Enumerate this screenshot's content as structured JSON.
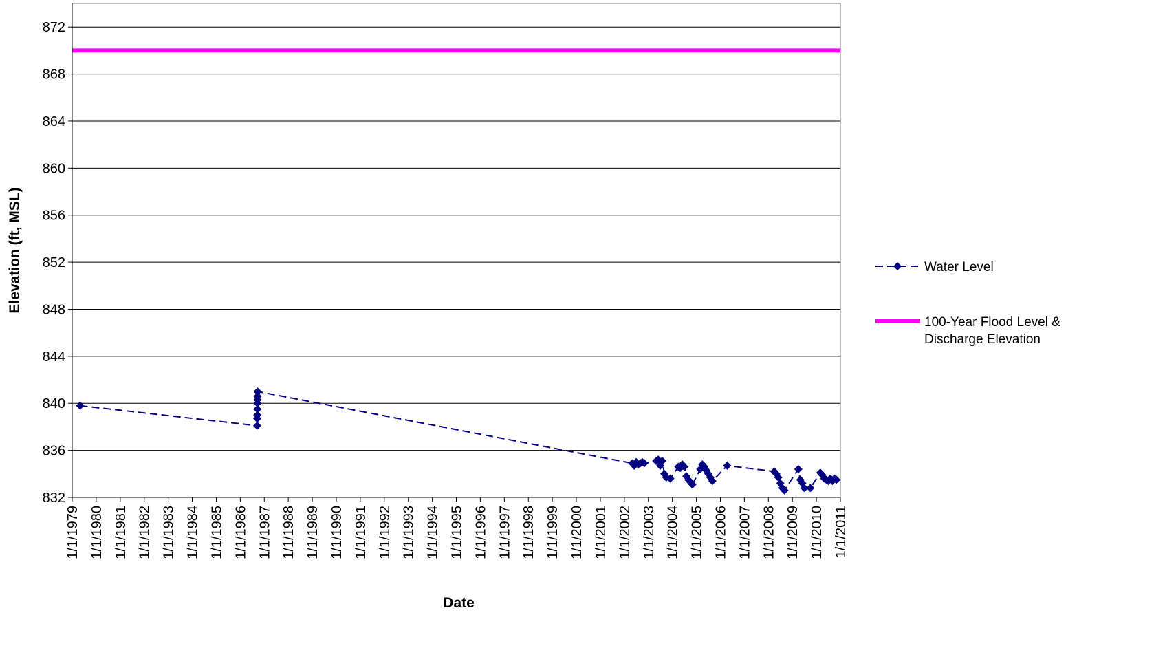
{
  "chart_data": {
    "type": "line",
    "title": "",
    "xlabel": "Date",
    "ylabel": "Elevation (ft, MSL)",
    "ylim": [
      832,
      874
    ],
    "yticks": [
      832,
      836,
      840,
      844,
      848,
      852,
      856,
      860,
      864,
      868,
      872
    ],
    "x_range": [
      "1/1/1979",
      "1/1/2011"
    ],
    "xticks": [
      "1/1/1979",
      "1/1/1980",
      "1/1/1981",
      "1/1/1982",
      "1/1/1983",
      "1/1/1984",
      "1/1/1985",
      "1/1/1986",
      "1/1/1987",
      "1/1/1988",
      "1/1/1989",
      "1/1/1990",
      "1/1/1991",
      "1/1/1992",
      "1/1/1993",
      "1/1/1994",
      "1/1/1995",
      "1/1/1996",
      "1/1/1997",
      "1/1/1998",
      "1/1/1999",
      "1/1/2000",
      "1/1/2001",
      "1/1/2002",
      "1/1/2003",
      "1/1/2004",
      "1/1/2005",
      "1/1/2006",
      "1/1/2007",
      "1/1/2008",
      "1/1/2009",
      "1/1/2010",
      "1/1/2011"
    ],
    "grid": "horizontal",
    "legend_position": "right",
    "series": [
      {
        "name": "Water Level",
        "color": "#000080",
        "line_style": "dashed",
        "marker": "diamond",
        "points": [
          {
            "x": "1979-05-01",
            "y": 839.8
          },
          {
            "x": "1986-09-15",
            "y": 838.1
          },
          {
            "x": "1986-09-16",
            "y": 838.7
          },
          {
            "x": "1986-09-17",
            "y": 839.0
          },
          {
            "x": "1986-09-18",
            "y": 839.5
          },
          {
            "x": "1986-09-19",
            "y": 840.0
          },
          {
            "x": "1986-09-20",
            "y": 840.3
          },
          {
            "x": "1986-09-21",
            "y": 840.6
          },
          {
            "x": "1986-09-22",
            "y": 841.0
          },
          {
            "x": "2002-05-01",
            "y": 834.9
          },
          {
            "x": "2002-06-01",
            "y": 834.7
          },
          {
            "x": "2002-07-01",
            "y": 835.0
          },
          {
            "x": "2002-08-01",
            "y": 834.8
          },
          {
            "x": "2002-09-01",
            "y": 834.9
          },
          {
            "x": "2002-10-01",
            "y": 835.0
          },
          {
            "x": "2002-11-01",
            "y": 834.9
          },
          {
            "x": "2003-05-01",
            "y": 835.1
          },
          {
            "x": "2003-06-01",
            "y": 835.2
          },
          {
            "x": "2003-07-01",
            "y": 834.7
          },
          {
            "x": "2003-08-01",
            "y": 835.1
          },
          {
            "x": "2003-09-01",
            "y": 834.0
          },
          {
            "x": "2003-10-01",
            "y": 833.7
          },
          {
            "x": "2003-12-01",
            "y": 833.6
          },
          {
            "x": "2004-04-01",
            "y": 834.6
          },
          {
            "x": "2004-05-01",
            "y": 834.5
          },
          {
            "x": "2004-06-01",
            "y": 834.8
          },
          {
            "x": "2004-07-01",
            "y": 834.6
          },
          {
            "x": "2004-08-01",
            "y": 833.8
          },
          {
            "x": "2004-09-01",
            "y": 833.5
          },
          {
            "x": "2004-10-01",
            "y": 833.3
          },
          {
            "x": "2004-11-01",
            "y": 833.1
          },
          {
            "x": "2005-03-01",
            "y": 834.4
          },
          {
            "x": "2005-04-01",
            "y": 834.8
          },
          {
            "x": "2005-05-01",
            "y": 834.6
          },
          {
            "x": "2005-06-01",
            "y": 834.3
          },
          {
            "x": "2005-07-01",
            "y": 834.0
          },
          {
            "x": "2005-08-01",
            "y": 833.7
          },
          {
            "x": "2005-09-01",
            "y": 833.4
          },
          {
            "x": "2006-04-15",
            "y": 834.7
          },
          {
            "x": "2008-04-01",
            "y": 834.2
          },
          {
            "x": "2008-05-01",
            "y": 834.0
          },
          {
            "x": "2008-06-01",
            "y": 833.7
          },
          {
            "x": "2008-07-01",
            "y": 833.2
          },
          {
            "x": "2008-08-01",
            "y": 832.8
          },
          {
            "x": "2008-09-01",
            "y": 832.6
          },
          {
            "x": "2009-04-01",
            "y": 834.4
          },
          {
            "x": "2009-05-01",
            "y": 833.5
          },
          {
            "x": "2009-06-01",
            "y": 833.2
          },
          {
            "x": "2009-07-01",
            "y": 832.8
          },
          {
            "x": "2009-10-01",
            "y": 832.8
          },
          {
            "x": "2010-03-01",
            "y": 834.1
          },
          {
            "x": "2010-04-01",
            "y": 833.9
          },
          {
            "x": "2010-05-01",
            "y": 833.6
          },
          {
            "x": "2010-06-01",
            "y": 833.5
          },
          {
            "x": "2010-07-01",
            "y": 833.4
          },
          {
            "x": "2010-08-01",
            "y": 833.6
          },
          {
            "x": "2010-09-01",
            "y": 833.4
          },
          {
            "x": "2010-10-01",
            "y": 833.6
          },
          {
            "x": "2010-11-01",
            "y": 833.5
          }
        ]
      },
      {
        "name": "100-Year Flood Level & Discharge Elevation",
        "legend_lines": [
          "100-Year Flood Level &",
          "Discharge Elevation"
        ],
        "color": "#FF00FF",
        "line_style": "solid",
        "marker": "none",
        "points": [
          {
            "x": "1979-01-01",
            "y": 870
          },
          {
            "x": "2011-01-01",
            "y": 870
          }
        ]
      }
    ]
  }
}
